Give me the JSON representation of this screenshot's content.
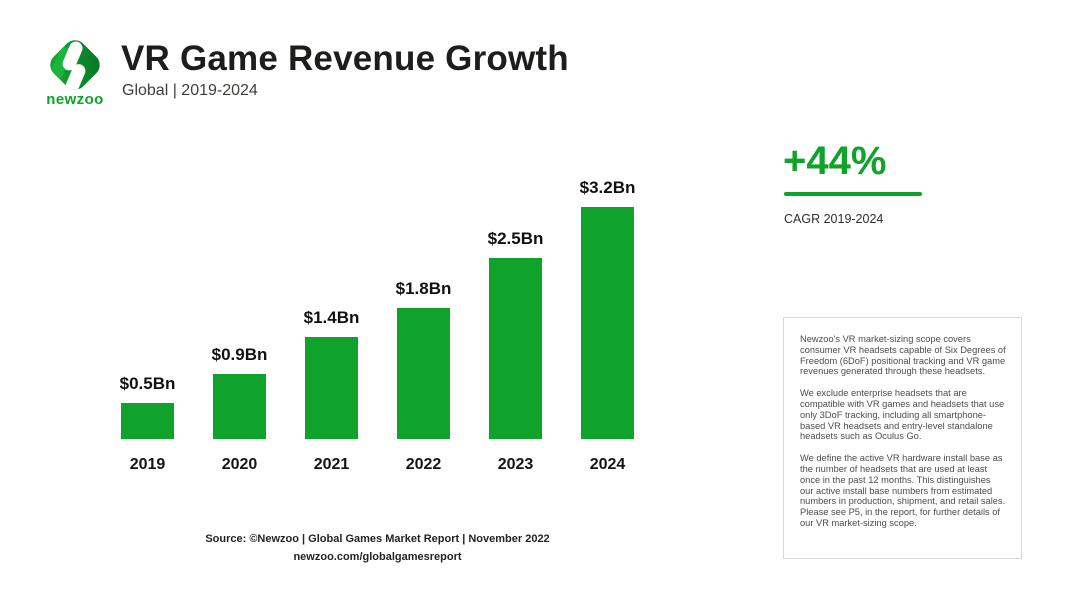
{
  "header": {
    "title": "VR Game Revenue Growth",
    "subtitle": "Global | 2019-2024",
    "logo_wordmark": "newzoo"
  },
  "chart_data": {
    "type": "bar",
    "title": "VR Game Revenue Growth",
    "subtitle": "Global | 2019-2024",
    "categories": [
      "2019",
      "2020",
      "2021",
      "2022",
      "2023",
      "2024"
    ],
    "values": [
      0.5,
      0.9,
      1.4,
      1.8,
      2.5,
      3.2
    ],
    "value_labels": [
      "$0.5Bn",
      "$0.9Bn",
      "$1.4Bn",
      "$1.8Bn",
      "$2.5Bn",
      "$3.2Bn"
    ],
    "unit": "USD billions",
    "ylim": [
      0,
      3.5
    ],
    "grid": false,
    "legend": "none",
    "bar_color": "#0fa32b"
  },
  "highlight": {
    "value": "+44%",
    "label": "CAGR 2019-2024",
    "color": "#0fa32b"
  },
  "note_box": {
    "paragraphs": [
      "Newzoo's VR market-sizing scope covers consumer VR headsets capable of Six Degrees of Freedom (6DoF) positional tracking and VR game revenues generated through these headsets.",
      "We exclude enterprise headsets that are compatible with VR games and headsets that use only 3DoF tracking, including all smartphone-based VR headsets and entry-level standalone headsets such as Oculus Go.",
      "We define the active VR hardware install base as the number of headsets that are used at least once in the past 12 months. This distinguishes our active install base numbers from estimated numbers in production, shipment, and retail sales. Please see P5, in the report, for further details of our VR market-sizing scope."
    ]
  },
  "source": {
    "line1": "Source: ©Newzoo | Global Games Market Report | November 2022",
    "line2": "newzoo.com/globalgamesreport"
  },
  "colors": {
    "brand_green": "#0fa32b",
    "logo_dark_green": "#0b7e28",
    "logo_light_green": "#1cb53c",
    "text_dark": "#1d1d1b",
    "note_text": "#4c4c4a",
    "note_border": "#d8d8d6",
    "background": "#ffffff"
  }
}
